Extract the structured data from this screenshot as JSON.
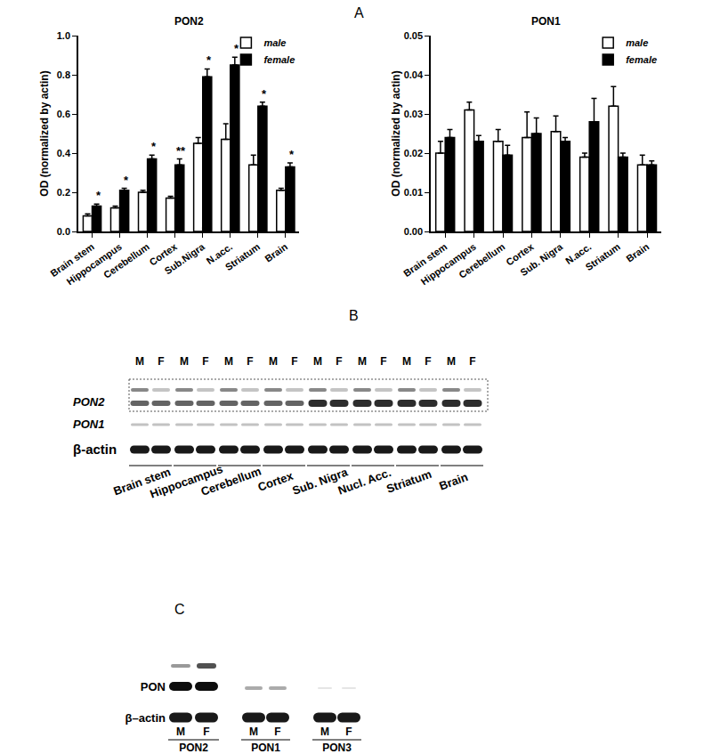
{
  "panel_labels": [
    "A",
    "B",
    "C"
  ],
  "chart_data": [
    {
      "type": "bar",
      "title": "PON2",
      "y_label": "OD (normalized by actin)",
      "categories": [
        "Brain stem",
        "Hippocampus",
        "Cerebellum",
        "Cortex",
        "Sub.Nigra",
        "N.acc.",
        "Striatum",
        "Brain"
      ],
      "series": [
        {
          "name": "male",
          "color": "#ffffff",
          "values": [
            0.08,
            0.12,
            0.2,
            0.17,
            0.45,
            0.47,
            0.34,
            0.21
          ],
          "errors": [
            0.01,
            0.01,
            0.01,
            0.01,
            0.03,
            0.08,
            0.05,
            0.01
          ]
        },
        {
          "name": "female",
          "color": "#000000",
          "values": [
            0.13,
            0.21,
            0.37,
            0.34,
            0.79,
            0.85,
            0.64,
            0.33
          ],
          "errors": [
            0.01,
            0.01,
            0.02,
            0.03,
            0.04,
            0.04,
            0.02,
            0.02
          ]
        }
      ],
      "significance": [
        "*",
        "*",
        "*",
        "**",
        "*",
        "*",
        "*",
        "*"
      ],
      "ylim": [
        0,
        1.0
      ],
      "yticks": [
        {
          "value": 0,
          "label": "0.0"
        },
        {
          "value": 0.2,
          "label": "0.2"
        },
        {
          "value": 0.4,
          "label": "0.4"
        },
        {
          "value": 0.6,
          "label": "0.6"
        },
        {
          "value": 0.8,
          "label": "0.8"
        },
        {
          "value": 1.0,
          "label": "1.0"
        }
      ],
      "legend": "top right",
      "grid": false
    },
    {
      "type": "bar",
      "title": "PON1",
      "y_label": "OD (normalized by actin)",
      "categories": [
        "Brain stem",
        "Hippocampus",
        "Cerebellum",
        "Cortex",
        "Sub. Nigra",
        "N.acc.",
        "Striatum",
        "Brain"
      ],
      "series": [
        {
          "name": "male",
          "color": "#ffffff",
          "values": [
            0.02,
            0.031,
            0.023,
            0.024,
            0.0255,
            0.019,
            0.032,
            0.017
          ],
          "errors": [
            0.003,
            0.002,
            0.003,
            0.0065,
            0.004,
            0.001,
            0.005,
            0.0025
          ]
        },
        {
          "name": "female",
          "color": "#000000",
          "values": [
            0.024,
            0.023,
            0.0195,
            0.025,
            0.023,
            0.028,
            0.019,
            0.017
          ],
          "errors": [
            0.002,
            0.0015,
            0.0025,
            0.004,
            0.001,
            0.006,
            0.001,
            0.001
          ]
        }
      ],
      "ylim": [
        0,
        0.05
      ],
      "yticks": [
        {
          "value": 0,
          "label": "0.00"
        },
        {
          "value": 0.01,
          "label": "0.01"
        },
        {
          "value": 0.02,
          "label": "0.02"
        },
        {
          "value": 0.03,
          "label": "0.03"
        },
        {
          "value": 0.04,
          "label": "0.04"
        },
        {
          "value": 0.05,
          "label": "0.05"
        }
      ],
      "legend": "top right",
      "grid": false
    }
  ],
  "blot_b": {
    "lanes": [
      "M",
      "F"
    ],
    "rows": [
      "PON2",
      "PON1",
      "β-actin"
    ],
    "groups": [
      "Brain stem",
      "Hippocampus",
      "Cerebellum",
      "Cortex",
      "Sub. Nigra",
      "Nucl. Acc.",
      "Striatum",
      "Brain"
    ]
  },
  "blot_c": {
    "lanes": [
      "M",
      "F"
    ],
    "rows": [
      "PON",
      "β–actin"
    ],
    "groups": [
      "PON2",
      "PON1",
      "PON3"
    ]
  }
}
